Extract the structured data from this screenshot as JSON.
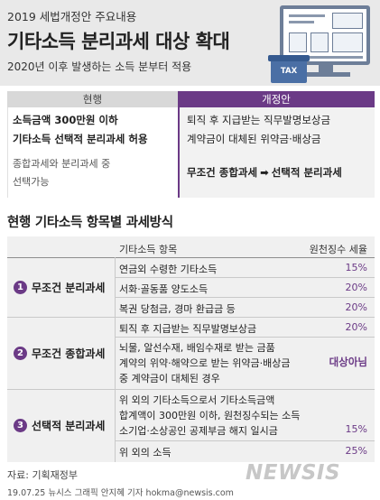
{
  "header": {
    "supertitle": "2019 세법개정안 주요내용",
    "title": "기타소득 분리과세 대상 확대",
    "subtitle": "2020년 이후 발생하는 소득 분부터 적용",
    "tax_box_label": "TAX"
  },
  "comparison": {
    "current_label": "현행",
    "proposed_label": "개정안",
    "current_lines": [
      "소득금액 300만원 이하",
      "기타소득 선택적 분리과세 허용",
      "종합과세와 분리과세 중",
      "선택가능"
    ],
    "proposed_lines": [
      "퇴직 후 지급받는 직무발명보상금",
      "계약금이 대체된 위약금·배상금"
    ],
    "proposed_from": "무조건 종합과세",
    "proposed_arrow": "➡",
    "proposed_to": "선택적 분리과세"
  },
  "section": {
    "title": "현행 기타소득 항목별 과세방식",
    "col_item": "기타소득 항목",
    "col_rate": "원천징수 세율",
    "groups": [
      {
        "num": "1",
        "name": "무조건 분리과세",
        "rows": [
          {
            "item": "연금외 수령한 기타소득",
            "rate": "15%"
          },
          {
            "item": "서화·골동품 양도소득",
            "rate": "20%"
          },
          {
            "item": "복권 당첨금, 경마 환급금 등",
            "rate": "20%"
          }
        ]
      },
      {
        "num": "2",
        "name": "무조건 종합과세",
        "rows": [
          {
            "item": "퇴직 후 지급받는 직무발명보상금",
            "rate": "20%"
          },
          {
            "lines": [
              "뇌물, 알선수재, 배임수재로 받는 금품",
              "계약의 위약·해약으로 받는 위약금·배상금",
              "중 계약금이 대체된 경우"
            ],
            "rate": "대상아님"
          }
        ]
      },
      {
        "num": "3",
        "name": "선택적 분리과세",
        "rows": [
          {
            "lines": [
              "위 외의 기타소득으로서 기타소득금액",
              "합계액이 300만원 이하, 원천징수되는 소득",
              "소기업·소상공인 공제부금 해지 일시금"
            ],
            "rate": "15%"
          },
          {
            "item": "위 외의 소득",
            "rate": "25%"
          }
        ]
      }
    ]
  },
  "footer": {
    "source": "자료: 기획재정부",
    "credit": "19.07.25 뉴시스 그래픽 안지혜 기자 hokma@newsis.com",
    "logo": "NEWSIS"
  },
  "colors": {
    "accent_purple": "#6b3a86",
    "header_bg": "#e9e9e9",
    "table_bg": "#f0f0f0",
    "illustration_blue": "#6d7e98"
  }
}
